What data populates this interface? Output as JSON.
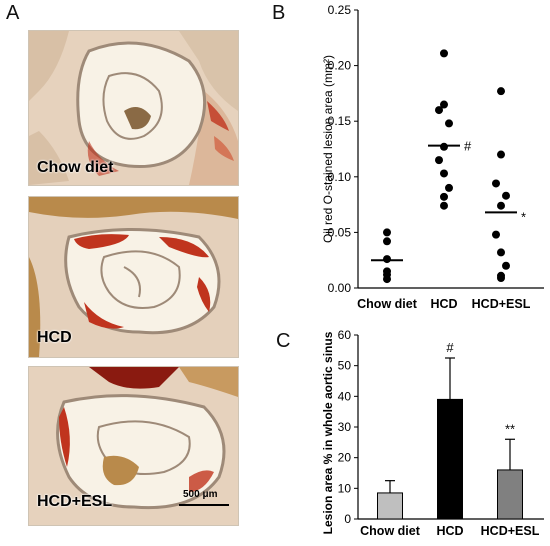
{
  "panels": {
    "A": "A",
    "B": "B",
    "C": "C"
  },
  "micrographs": [
    {
      "label": "Chow diet"
    },
    {
      "label": "HCD"
    },
    {
      "label": "HCD+ESL"
    }
  ],
  "scale_bar_label": "500 μm",
  "colors": {
    "tissue_bg": "#e6d2bd",
    "lumen": "#f8f2e6",
    "plaque_red": "#c0341e",
    "tissue_edge": "#9e8a78",
    "myocardium": "#b98a4b",
    "bar_chow": "#bfbfbf",
    "bar_hcd": "#000000",
    "bar_esl": "#808080"
  },
  "chart_data": [
    {
      "panel": "B",
      "type": "scatter",
      "categories": [
        "Chow diet",
        "HCD",
        "HCD+ESL"
      ],
      "series": [
        {
          "values": [
            [
              0.05,
              0.042,
              0.026,
              0.015,
              0.012,
              0.008
            ],
            [
              0.211,
              0.165,
              0.16,
              0.148,
              0.127,
              0.115,
              0.103,
              0.09,
              0.082,
              0.074
            ],
            [
              0.177,
              0.12,
              0.094,
              0.083,
              0.074,
              0.048,
              0.032,
              0.02,
              0.011,
              0.009
            ]
          ]
        }
      ],
      "means": [
        0.025,
        0.128,
        0.068
      ],
      "annotations": [
        "",
        "#",
        "*"
      ],
      "ylabel": "Oil red O-stained lesion area (mm²)",
      "ylim": [
        0,
        0.25
      ],
      "yticks": [
        "0.00",
        "0.05",
        "0.10",
        "0.15",
        "0.20",
        "0.25"
      ]
    },
    {
      "panel": "C",
      "type": "bar",
      "categories": [
        "Chow diet",
        "HCD",
        "HCD+ESL"
      ],
      "values": [
        8.5,
        39,
        16
      ],
      "errors": [
        4,
        13.5,
        10
      ],
      "annotations": [
        "",
        "#",
        "**"
      ],
      "ylabel": "Lesion area % in whole aortic sinus",
      "ylim": [
        0,
        60
      ],
      "yticks": [
        "0",
        "10",
        "20",
        "30",
        "40",
        "50",
        "60"
      ]
    }
  ]
}
